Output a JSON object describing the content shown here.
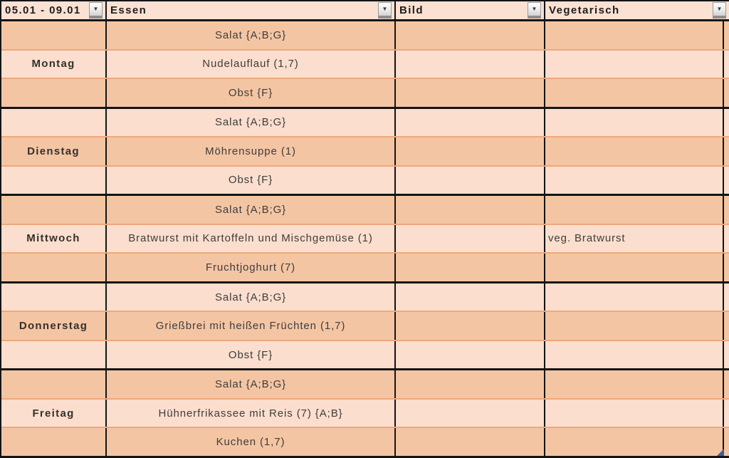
{
  "header": {
    "columns": [
      {
        "label": "05.01 - 09.01"
      },
      {
        "label": "Essen"
      },
      {
        "label": "Bild"
      },
      {
        "label": "Vegetarisch"
      }
    ]
  },
  "icons": {
    "filter_glyph": "▼"
  },
  "days": [
    {
      "name": "Montag",
      "meals": [
        "Salat {A;B;G}",
        "Nudelauflauf (1,7)",
        "Obst {F}"
      ],
      "vegetarisch": ""
    },
    {
      "name": "Dienstag",
      "meals": [
        "Salat {A;B;G}",
        "Möhrensuppe (1)",
        "Obst {F}"
      ],
      "vegetarisch": ""
    },
    {
      "name": "Mittwoch",
      "meals": [
        "Salat {A;B;G}",
        "Bratwurst mit Kartoffeln und Mischgemüse (1)",
        "Fruchtjoghurt (7)"
      ],
      "vegetarisch": "veg. Bratwurst"
    },
    {
      "name": "Donnerstag",
      "meals": [
        "Salat {A;B;G}",
        "Grießbrei mit heißen Früchten (1,7)",
        "Obst {F}"
      ],
      "vegetarisch": ""
    },
    {
      "name": "Freitag",
      "meals": [
        "Salat {A;B;G}",
        "Hühnerfrikassee mit Reis (7) {A;B}",
        "Kuchen (1,7)"
      ],
      "vegetarisch": ""
    }
  ],
  "colors": {
    "row_dark": "#f4c5a3",
    "row_light": "#fbdecd",
    "header_bg": "#fbe1d3",
    "row_divider": "#eda87f",
    "grid_border": "#141414",
    "range_handle_blue": "#3b5ea6"
  }
}
